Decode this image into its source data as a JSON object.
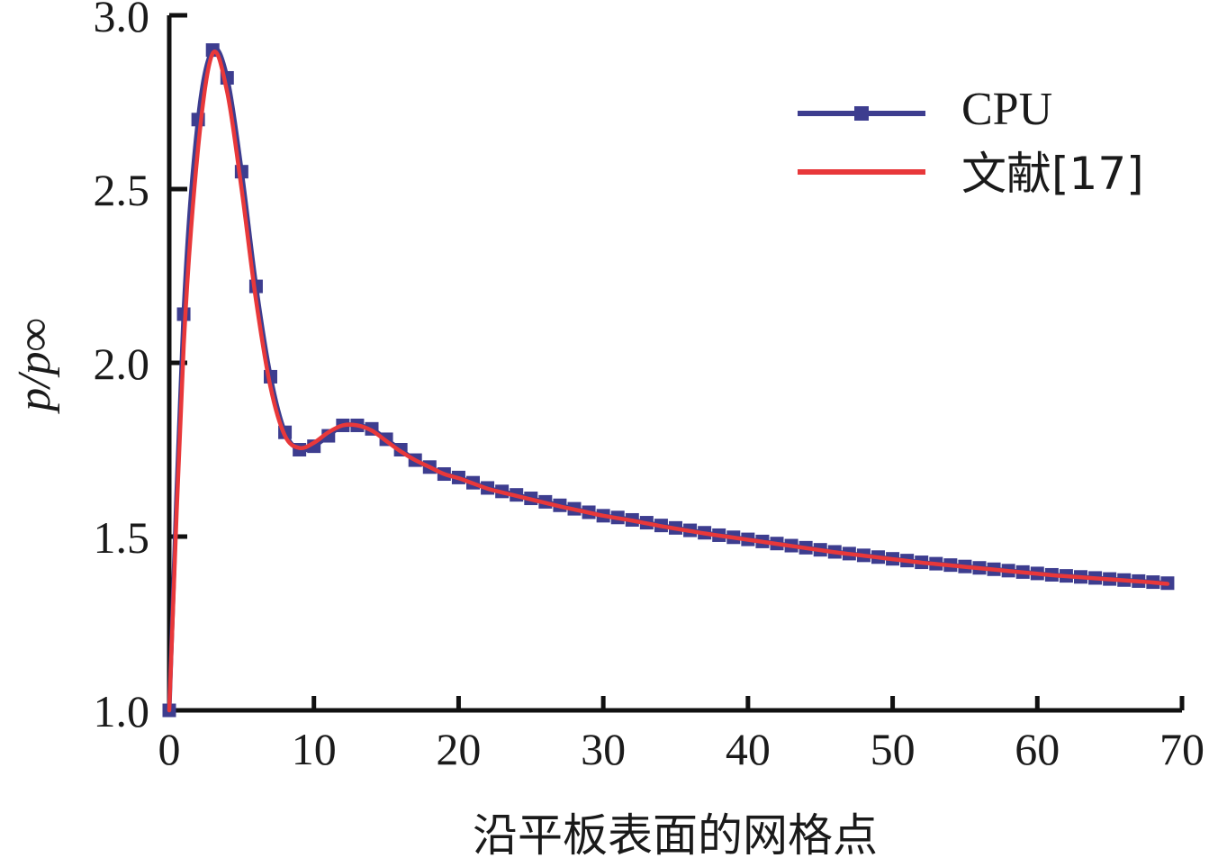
{
  "chart_data": {
    "type": "line",
    "xlabel": "沿平板表面的网格点",
    "ylabel": "p/p∞",
    "xlim": [
      0,
      70
    ],
    "ylim": [
      1.0,
      3.0
    ],
    "xticks": [
      "0",
      "10",
      "20",
      "30",
      "40",
      "50",
      "60",
      "70"
    ],
    "yticks": [
      "1.0",
      "1.5",
      "2.0",
      "2.5",
      "3.0"
    ],
    "grid": false,
    "legend_position": "top-right",
    "series": [
      {
        "name": "CPU",
        "color": "#3d3d8f",
        "marker": "square",
        "x": [
          0,
          1,
          2,
          3,
          4,
          5,
          6,
          7,
          8,
          9,
          10,
          11,
          12,
          13,
          14,
          15,
          16,
          17,
          18,
          19,
          20,
          21,
          22,
          23,
          24,
          25,
          26,
          27,
          28,
          29,
          30,
          31,
          32,
          33,
          34,
          35,
          36,
          37,
          38,
          39,
          40,
          41,
          42,
          43,
          44,
          45,
          46,
          47,
          48,
          49,
          50,
          51,
          52,
          53,
          54,
          55,
          56,
          57,
          58,
          59,
          60,
          61,
          62,
          63,
          64,
          65,
          66,
          67,
          68,
          69
        ],
        "y": [
          1.0,
          2.14,
          2.7,
          2.9,
          2.82,
          2.55,
          2.22,
          1.96,
          1.8,
          1.75,
          1.76,
          1.79,
          1.82,
          1.82,
          1.81,
          1.78,
          1.75,
          1.72,
          1.7,
          1.68,
          1.67,
          1.655,
          1.64,
          1.63,
          1.62,
          1.61,
          1.6,
          1.59,
          1.58,
          1.57,
          1.56,
          1.555,
          1.548,
          1.54,
          1.532,
          1.525,
          1.518,
          1.511,
          1.504,
          1.498,
          1.492,
          1.486,
          1.48,
          1.474,
          1.468,
          1.462,
          1.456,
          1.451,
          1.446,
          1.441,
          1.436,
          1.431,
          1.426,
          1.422,
          1.418,
          1.414,
          1.41,
          1.406,
          1.402,
          1.398,
          1.394,
          1.39,
          1.387,
          1.384,
          1.381,
          1.378,
          1.375,
          1.372,
          1.369,
          1.366
        ]
      },
      {
        "name": "文献[17]",
        "color": "#e8383a",
        "marker": "none",
        "x": [
          0,
          1,
          2,
          3,
          4,
          5,
          6,
          7,
          8,
          9,
          10,
          11,
          12,
          13,
          14,
          15,
          16,
          17,
          18,
          19,
          20,
          21,
          22,
          23,
          24,
          25,
          26,
          27,
          28,
          29,
          30,
          31,
          32,
          33,
          34,
          35,
          36,
          37,
          38,
          39,
          40,
          41,
          42,
          43,
          44,
          45,
          46,
          47,
          48,
          49,
          50,
          51,
          52,
          53,
          54,
          55,
          56,
          57,
          58,
          59,
          60,
          61,
          62,
          63,
          64,
          65,
          66,
          67,
          68,
          69
        ],
        "y": [
          1.0,
          2.05,
          2.62,
          2.89,
          2.78,
          2.5,
          2.18,
          1.93,
          1.79,
          1.755,
          1.77,
          1.8,
          1.82,
          1.82,
          1.805,
          1.775,
          1.745,
          1.72,
          1.7,
          1.68,
          1.668,
          1.653,
          1.638,
          1.627,
          1.617,
          1.607,
          1.597,
          1.587,
          1.578,
          1.569,
          1.56,
          1.553,
          1.546,
          1.538,
          1.53,
          1.523,
          1.516,
          1.509,
          1.503,
          1.497,
          1.491,
          1.485,
          1.479,
          1.473,
          1.467,
          1.461,
          1.455,
          1.45,
          1.445,
          1.44,
          1.435,
          1.43,
          1.425,
          1.421,
          1.417,
          1.413,
          1.409,
          1.405,
          1.401,
          1.397,
          1.393,
          1.389,
          1.386,
          1.383,
          1.38,
          1.377,
          1.374,
          1.371,
          1.368,
          1.364
        ]
      }
    ]
  }
}
